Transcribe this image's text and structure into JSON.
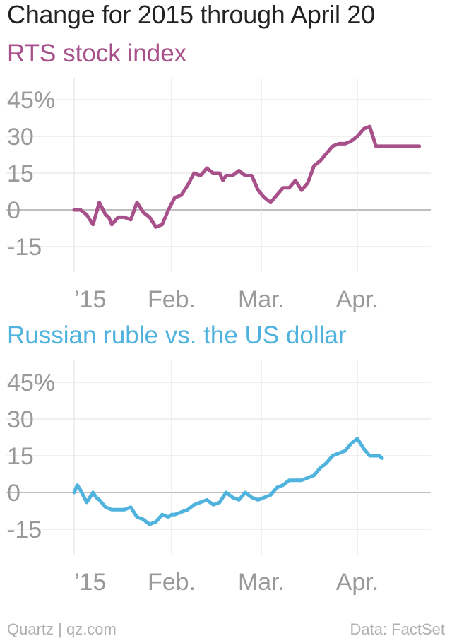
{
  "header": {
    "title": "Change for 2015 through April 20"
  },
  "footer": {
    "credit": "Quartz | qz.com",
    "source": "Data: FactSet"
  },
  "colors": {
    "rts": "#a8508a",
    "ruble": "#4fb3de",
    "grid": "#e6e6e6",
    "zero": "#aaaaaa",
    "tick": "#999999"
  },
  "chart_data": [
    {
      "type": "line",
      "title": "RTS stock index",
      "x_tick_labels": [
        "’15",
        "Feb.",
        "Mar.",
        "Apr."
      ],
      "y_ticks": [
        45,
        30,
        15,
        0,
        -15
      ],
      "y_tick_labels": [
        "45%",
        "30",
        "15",
        "0",
        "-15"
      ],
      "ylim": [
        -20,
        48
      ],
      "x_range_days": [
        0,
        110
      ],
      "grid": true,
      "series": [
        {
          "color": "#a8508a",
          "x": [
            0,
            2,
            4,
            6,
            8,
            10,
            11,
            12,
            14,
            16,
            18,
            20,
            22,
            24,
            26,
            28,
            30,
            32,
            34,
            36,
            38,
            40,
            42,
            44,
            46,
            47,
            48,
            50,
            52,
            54,
            56,
            58,
            60,
            62,
            64,
            66,
            68,
            70,
            72,
            74,
            76,
            78,
            80,
            82,
            84,
            86,
            88,
            90,
            92,
            94,
            96,
            98,
            100,
            102,
            104,
            106,
            107,
            108,
            109,
            110
          ],
          "values": [
            0,
            0,
            -2,
            -6,
            3,
            -2,
            -3,
            -6,
            -3,
            -3,
            -4,
            3,
            -1,
            -3,
            -7,
            -6,
            0,
            5,
            6,
            10,
            15,
            14,
            17,
            15,
            15,
            12,
            14,
            14,
            16,
            14,
            14,
            8,
            5,
            3,
            6,
            9,
            9,
            12,
            8,
            11,
            18,
            20,
            23,
            26,
            27,
            27,
            28,
            30,
            33,
            34,
            26,
            26,
            26,
            26,
            26,
            26,
            26,
            26,
            26,
            26
          ]
        }
      ]
    },
    {
      "type": "line",
      "title": "Russian ruble vs. the US dollar",
      "x_tick_labels": [
        "’15",
        "Feb.",
        "Mar.",
        "Apr."
      ],
      "y_ticks": [
        45,
        30,
        15,
        0,
        -15
      ],
      "y_tick_labels": [
        "45%",
        "30",
        "15",
        "0",
        "-15"
      ],
      "ylim": [
        -20,
        48
      ],
      "x_range_days": [
        0,
        110
      ],
      "grid": true,
      "series": [
        {
          "color": "#4fb3de",
          "x": [
            0,
            1,
            2,
            4,
            6,
            7,
            8,
            10,
            12,
            13,
            14,
            16,
            18,
            20,
            22,
            24,
            26,
            28,
            30,
            31,
            32,
            34,
            36,
            38,
            40,
            42,
            44,
            46,
            48,
            50,
            52,
            54,
            56,
            58,
            60,
            62,
            64,
            66,
            68,
            70,
            72,
            74,
            76,
            78,
            80,
            82,
            84,
            86,
            88,
            90,
            92,
            94,
            95,
            96,
            97,
            98
          ],
          "values": [
            0,
            3,
            1,
            -4,
            0,
            -2,
            -3,
            -6,
            -7,
            -7,
            -7,
            -7,
            -6,
            -10,
            -11,
            -13,
            -12,
            -9,
            -10,
            -9,
            -9,
            -8,
            -7,
            -5,
            -4,
            -3,
            -5,
            -4,
            0,
            -2,
            -3,
            0,
            -2,
            -3,
            -2,
            -1,
            2,
            3,
            5,
            5,
            5,
            6,
            7,
            10,
            12,
            15,
            16,
            17,
            20,
            22,
            18,
            15,
            15,
            15,
            15,
            14
          ]
        }
      ]
    }
  ]
}
